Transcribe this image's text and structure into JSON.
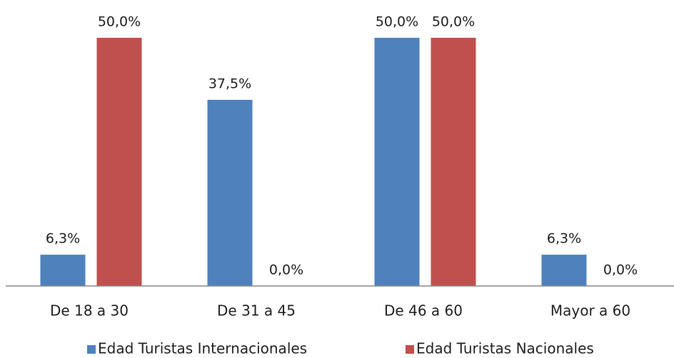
{
  "chart_data": {
    "type": "bar",
    "categories": [
      "De 18 a 30",
      "De 31 a 45",
      "De 46 a 60",
      "Mayor a 60"
    ],
    "series": [
      {
        "name": "Edad Turistas Internacionales",
        "color": "#4f81bd",
        "values": [
          6.3,
          37.5,
          50,
          6.3
        ],
        "value_labels": [
          "6,3%",
          "37,5%",
          "50,0%",
          "6,3%"
        ]
      },
      {
        "name": "Edad Turistas Nacionales",
        "color": "#c0504d",
        "values": [
          50,
          0,
          50,
          0
        ],
        "value_labels": [
          "50,0%",
          "0,0%",
          "50,0%",
          "0,0%"
        ]
      }
    ],
    "ylim": [
      0,
      50
    ],
    "legend": "bottom"
  }
}
